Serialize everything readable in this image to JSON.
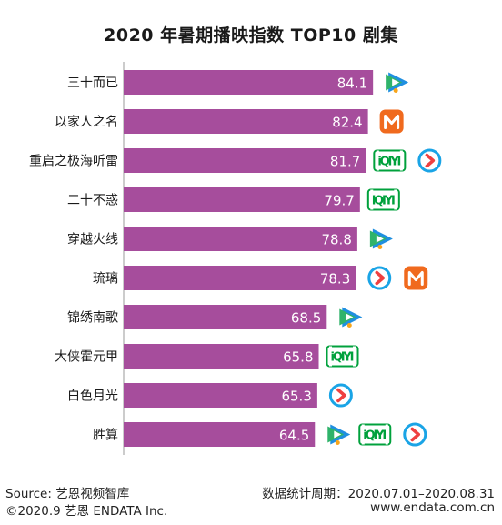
{
  "chart_data": {
    "type": "bar",
    "orientation": "horizontal",
    "title": "2020 年暑期播映指数 TOP10 剧集",
    "categories": [
      "三十而已",
      "以家人之名",
      "重启之极海听雷",
      "二十不惑",
      "穿越火线",
      "琉璃",
      "锦绣南歌",
      "大侠霍元甲",
      "白色月光",
      "胜算"
    ],
    "values": [
      84.1,
      82.4,
      81.7,
      79.7,
      78.8,
      78.3,
      68.5,
      65.8,
      65.3,
      64.5
    ],
    "platforms": [
      [
        "tencent-video"
      ],
      [
        "mango-tv"
      ],
      [
        "iqiyi",
        "youku"
      ],
      [
        "iqiyi"
      ],
      [
        "tencent-video"
      ],
      [
        "youku",
        "mango-tv"
      ],
      [
        "tencent-video"
      ],
      [
        "iqiyi"
      ],
      [
        "youku"
      ],
      [
        "tencent-video",
        "iqiyi",
        "youku"
      ]
    ],
    "grid": false,
    "legend": "none",
    "bar_color": "#a64d9c",
    "colors": {
      "bar": "#a64d9c",
      "tencent_green": "#2fb36a",
      "tencent_blue": "#1f8fe0",
      "tencent_orange": "#f7a51b",
      "mango": "#f06a1e",
      "iqiyi": "#00a13c",
      "youku_ring": "#1aa4e6",
      "youku_mark": "#ef4040"
    }
  },
  "footer": {
    "source": "Source: 艺恩视频智库",
    "copyright": "©2020.9 艺恩 ENDATA Inc.",
    "period": "数据统计周期：2020.07.01–2020.08.31",
    "website": "www.endata.com.cn"
  }
}
